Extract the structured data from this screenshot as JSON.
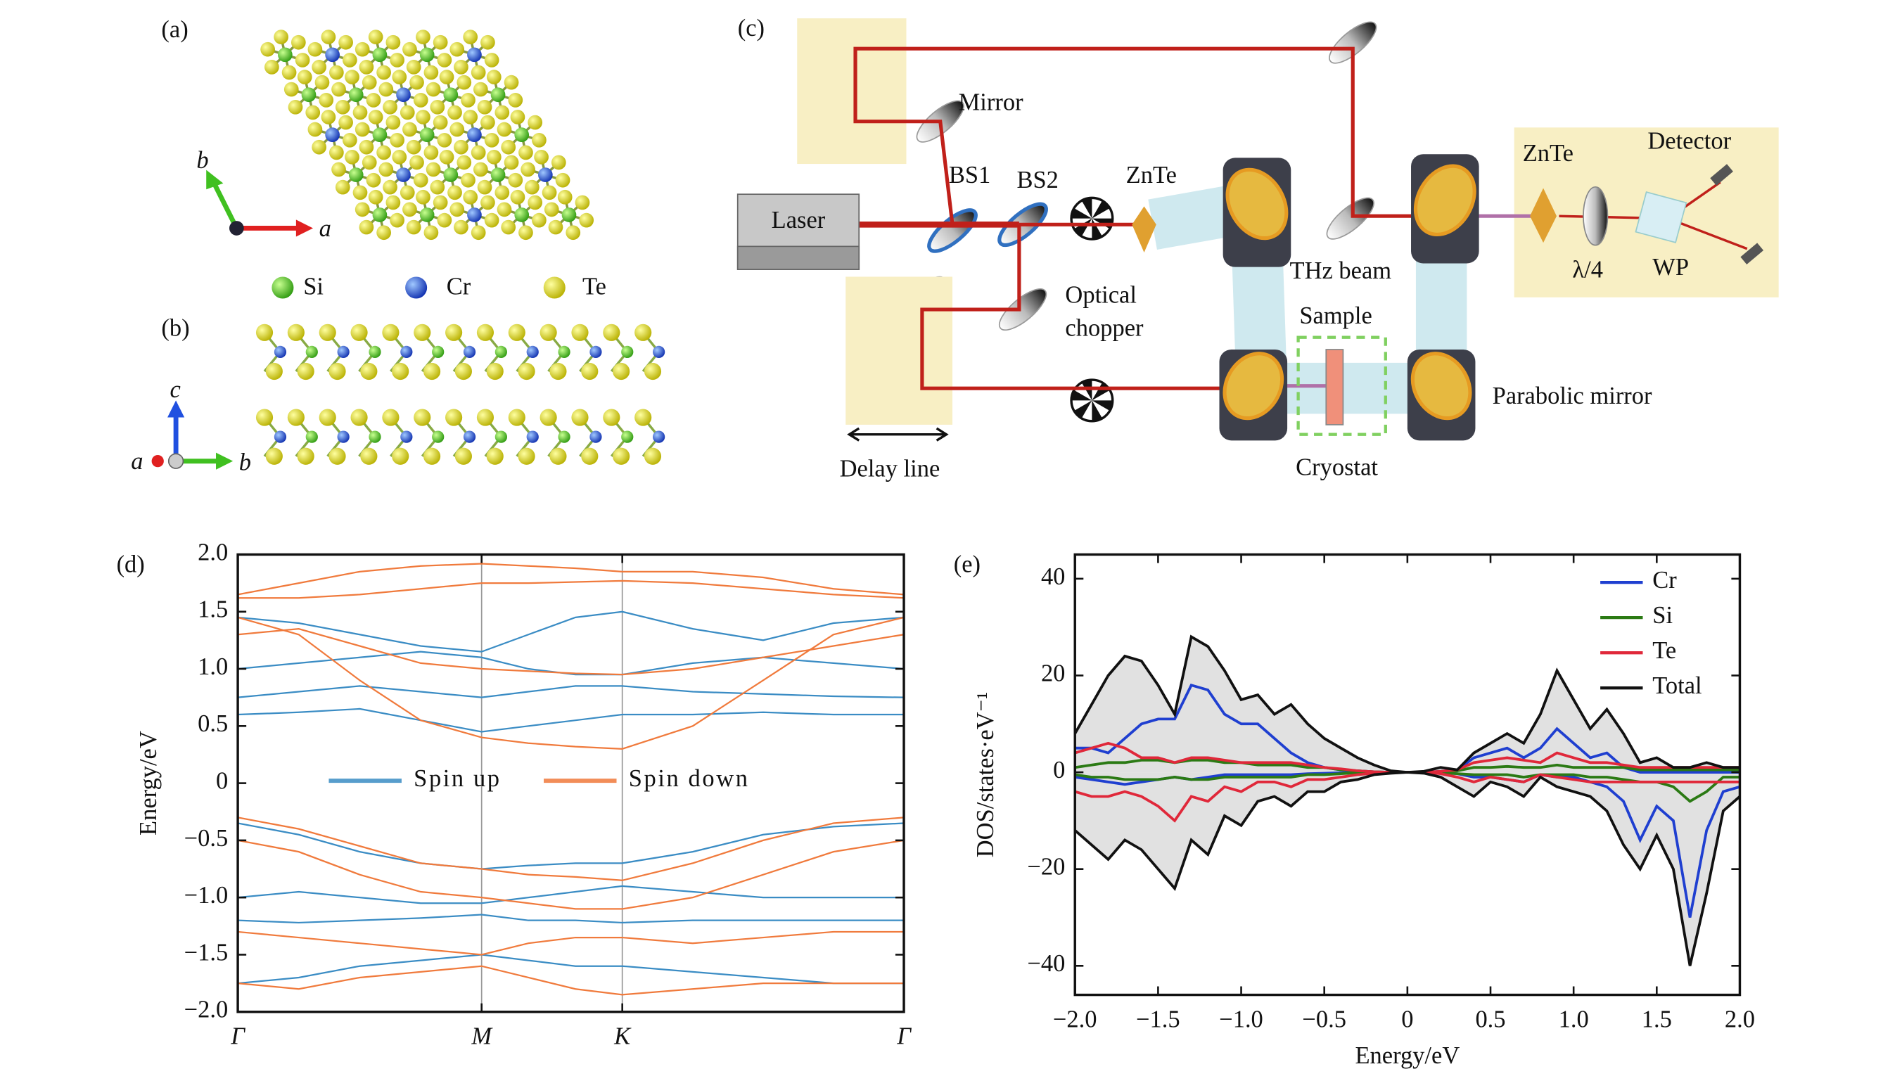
{
  "panels": {
    "a": {
      "label": "(a)",
      "axes": [
        "b",
        "a"
      ],
      "legend": [
        "Si",
        "Cr",
        "Te"
      ]
    },
    "b": {
      "label": "(b)",
      "axes": [
        "c",
        "a",
        "b"
      ]
    },
    "c": {
      "label": "(c)",
      "mirror": "Mirror",
      "bs1": "BS1",
      "bs2": "BS2",
      "znte1": "ZnTe",
      "laser": "Laser",
      "optical": "Optical",
      "chopper": "chopper",
      "thz": "THz beam",
      "sample": "Sample",
      "cryostat": "Cryostat",
      "delay": "Delay line",
      "parabolic": "Parabolic mirror",
      "znte2": "ZnTe",
      "detector": "Detector",
      "quarter": "λ/4",
      "wp": "WP"
    }
  },
  "chart_data": [
    {
      "type": "line",
      "panel": "(d)",
      "ylabel": "Energy/eV",
      "x": [
        0,
        0.25,
        0.5,
        0.75,
        1,
        1.192,
        1.385,
        1.577,
        1.866,
        2.155,
        2.443,
        2.732
      ],
      "xlim": [
        0,
        2.732
      ],
      "xticks": [
        {
          "value": 0,
          "label": "Γ"
        },
        {
          "value": 1,
          "label": "M"
        },
        {
          "value": 1.577,
          "label": "K"
        },
        {
          "value": 2.732,
          "label": "Γ"
        }
      ],
      "xgrid": true,
      "ylim": [
        -2,
        2
      ],
      "yticks": [
        {
          "value": 2,
          "label": "2.0"
        },
        1.5,
        {
          "value": 1,
          "label": "1.0"
        },
        0.5,
        0,
        {
          "value": -0.5,
          "label": "−0.5"
        },
        {
          "value": -1,
          "label": "−1.0"
        },
        {
          "value": -1.5,
          "label": "−1.5"
        },
        {
          "value": -2,
          "label": "−2.0"
        }
      ],
      "legend": "center",
      "series": [
        {
          "name": "Spin up",
          "color": "#3a8cc4",
          "values": [
            [
              0.6,
              0.62,
              0.65,
              0.55,
              0.45,
              0.5,
              0.55,
              0.6,
              0.6,
              0.62,
              0.6,
              0.6
            ],
            [
              0.75,
              0.8,
              0.85,
              0.8,
              0.75,
              0.8,
              0.85,
              0.85,
              0.8,
              0.78,
              0.76,
              0.75
            ],
            [
              1.0,
              1.05,
              1.1,
              1.15,
              1.1,
              1.0,
              0.95,
              0.95,
              1.05,
              1.1,
              1.05,
              1.0
            ],
            [
              1.45,
              1.4,
              1.3,
              1.2,
              1.15,
              1.3,
              1.45,
              1.5,
              1.35,
              1.25,
              1.4,
              1.45
            ],
            [
              -0.35,
              -0.45,
              -0.6,
              -0.7,
              -0.75,
              -0.72,
              -0.7,
              -0.7,
              -0.6,
              -0.45,
              -0.38,
              -0.35
            ],
            [
              -1.0,
              -0.95,
              -1.0,
              -1.05,
              -1.05,
              -1.0,
              -0.95,
              -0.9,
              -0.95,
              -1.0,
              -1.0,
              -1.0
            ],
            [
              -1.2,
              -1.22,
              -1.2,
              -1.18,
              -1.15,
              -1.2,
              -1.2,
              -1.22,
              -1.2,
              -1.2,
              -1.2,
              -1.2
            ],
            [
              -1.75,
              -1.7,
              -1.6,
              -1.55,
              -1.5,
              -1.55,
              -1.6,
              -1.6,
              -1.65,
              -1.7,
              -1.75,
              -1.75
            ]
          ]
        },
        {
          "name": "Spin down",
          "color": "#f07a3c",
          "values": [
            [
              1.45,
              1.3,
              0.9,
              0.55,
              0.4,
              0.35,
              0.32,
              0.3,
              0.5,
              0.9,
              1.3,
              1.45
            ],
            [
              1.62,
              1.62,
              1.65,
              1.7,
              1.75,
              1.75,
              1.76,
              1.77,
              1.75,
              1.7,
              1.65,
              1.62
            ],
            [
              1.65,
              1.75,
              1.85,
              1.9,
              1.92,
              1.9,
              1.88,
              1.85,
              1.85,
              1.8,
              1.7,
              1.65
            ],
            [
              1.3,
              1.35,
              1.2,
              1.05,
              1.0,
              0.98,
              0.96,
              0.95,
              1.0,
              1.1,
              1.2,
              1.3
            ],
            [
              -0.3,
              -0.4,
              -0.55,
              -0.7,
              -0.75,
              -0.8,
              -0.82,
              -0.85,
              -0.7,
              -0.5,
              -0.35,
              -0.3
            ],
            [
              -0.5,
              -0.6,
              -0.8,
              -0.95,
              -1.0,
              -1.05,
              -1.1,
              -1.1,
              -1.0,
              -0.8,
              -0.6,
              -0.5
            ],
            [
              -1.3,
              -1.35,
              -1.4,
              -1.45,
              -1.5,
              -1.4,
              -1.35,
              -1.35,
              -1.4,
              -1.35,
              -1.3,
              -1.3
            ],
            [
              -1.75,
              -1.8,
              -1.7,
              -1.65,
              -1.6,
              -1.7,
              -1.8,
              -1.85,
              -1.8,
              -1.75,
              -1.75,
              -1.75
            ]
          ]
        }
      ]
    },
    {
      "type": "line",
      "panel": "(e)",
      "xlabel": "Energy/eV",
      "ylabel": "DOS/states·eV⁻¹",
      "x": [
        -2.0,
        -1.9,
        -1.8,
        -1.7,
        -1.6,
        -1.5,
        -1.4,
        -1.3,
        -1.2,
        -1.1,
        -1.0,
        -0.9,
        -0.8,
        -0.7,
        -0.6,
        -0.5,
        -0.4,
        -0.3,
        -0.2,
        -0.1,
        0,
        0.1,
        0.2,
        0.3,
        0.4,
        0.5,
        0.6,
        0.7,
        0.8,
        0.9,
        1.0,
        1.1,
        1.2,
        1.3,
        1.4,
        1.5,
        1.6,
        1.7,
        1.8,
        1.9,
        2.0
      ],
      "xlim": [
        -2,
        2
      ],
      "xticks": [
        {
          "value": -2,
          "label": "−2.0"
        },
        {
          "value": -1.5,
          "label": "−1.5"
        },
        {
          "value": -1,
          "label": "−1.0"
        },
        {
          "value": -0.5,
          "label": "−0.5"
        },
        0,
        0.5,
        {
          "value": 1,
          "label": "1.0"
        },
        1.5,
        {
          "value": 2,
          "label": "2.0"
        }
      ],
      "ylim": [
        -46,
        45
      ],
      "yticks": [
        {
          "value": -40,
          "label": "−40"
        },
        {
          "value": -20,
          "label": "−20"
        },
        0,
        20,
        40
      ],
      "legend": "upper right",
      "series": [
        {
          "name": "Cr",
          "color": "#1f3fd0",
          "values": [
            5,
            5,
            4,
            7,
            10,
            11,
            11,
            18,
            17,
            12,
            10,
            10,
            7,
            4,
            2,
            1,
            0.5,
            0.3,
            0.1,
            0,
            0,
            0,
            0.2,
            0.5,
            3,
            4,
            5,
            3,
            5,
            9,
            6,
            3,
            4,
            1,
            0,
            0,
            0,
            0,
            0,
            0,
            0
          ]
        },
        {
          "color": "#1f3fd0",
          "values": [
            -1,
            -1.5,
            -2,
            -2.5,
            -2,
            -1.5,
            -1,
            -1.5,
            -1,
            -0.5,
            -0.5,
            -0.5,
            -0.5,
            -0.5,
            -0.3,
            -0.2,
            -0.1,
            0,
            0,
            0,
            0,
            0,
            -0.1,
            -0.3,
            -1,
            -1,
            -1.5,
            -2,
            -0.5,
            -1,
            -1,
            -2,
            -3,
            -6,
            -14,
            -7,
            -10,
            -30,
            -12,
            -4,
            -3
          ]
        },
        {
          "name": "Si",
          "color": "#2b7a14",
          "values": [
            1,
            1.5,
            2,
            2,
            2.5,
            2.5,
            2,
            2.5,
            2.5,
            2,
            2,
            1.5,
            1.5,
            1.5,
            1,
            1,
            0.5,
            0.3,
            0.1,
            0,
            0,
            0,
            0.1,
            0.3,
            1,
            1,
            1.2,
            1,
            1,
            1.5,
            1,
            1,
            1,
            1,
            0.5,
            0.5,
            0.5,
            0.5,
            0.5,
            0.5,
            0.5
          ]
        },
        {
          "color": "#2b7a14",
          "values": [
            -0.5,
            -1,
            -1,
            -1.5,
            -1.5,
            -1.5,
            -1,
            -1.5,
            -1.5,
            -1,
            -1,
            -1,
            -1,
            -1,
            -0.5,
            -0.5,
            -0.3,
            -0.1,
            0,
            0,
            0,
            0,
            -0.1,
            -0.3,
            -0.5,
            -0.5,
            -0.5,
            -1,
            -0.5,
            -0.5,
            -0.5,
            -1,
            -1,
            -1.5,
            -2,
            -2,
            -3,
            -6,
            -4,
            -1,
            -1
          ]
        },
        {
          "name": "Te",
          "color": "#e0283a",
          "values": [
            4,
            5,
            6,
            5,
            3,
            3,
            2,
            3,
            3,
            2.5,
            2,
            2,
            2,
            2,
            1.5,
            1,
            0.7,
            0.3,
            0.1,
            0,
            0,
            0,
            0.2,
            0.5,
            2,
            2.5,
            3,
            2.5,
            2,
            4,
            3,
            2,
            2,
            1.5,
            1,
            1,
            1,
            1,
            1,
            1,
            1
          ]
        },
        {
          "color": "#e0283a",
          "values": [
            -4,
            -5,
            -5,
            -4,
            -5,
            -7,
            -10,
            -5,
            -6,
            -3,
            -4,
            -2,
            -2,
            -3,
            -1.5,
            -1.5,
            -1,
            -0.5,
            -0.2,
            0,
            0,
            0,
            -0.3,
            -1,
            -2,
            -1,
            -1.5,
            -2,
            -0.5,
            -1,
            -1.5,
            -2,
            -2,
            -2,
            -2,
            -2,
            -2,
            -2,
            -2,
            -2,
            -2
          ]
        },
        {
          "name": "Total",
          "color": "#111111",
          "fill": "#d4d4d4",
          "values": [
            8,
            14,
            20,
            24,
            23,
            18,
            12,
            28,
            26,
            21,
            15,
            16,
            12,
            14,
            10,
            7,
            5,
            3,
            1.5,
            0.3,
            0,
            0.2,
            1,
            0.5,
            4,
            6,
            8,
            6,
            12,
            21,
            15,
            9,
            13,
            8,
            2,
            3,
            1,
            1,
            2,
            1,
            1
          ]
        },
        {
          "color": "#111111",
          "fill": "#d4d4d4",
          "values": [
            -12,
            -15,
            -18,
            -14,
            -16,
            -20,
            -24,
            -14,
            -17,
            -9,
            -11,
            -6,
            -5,
            -7,
            -4,
            -4,
            -2,
            -1.5,
            -0.5,
            -0.2,
            0,
            -0.2,
            -1,
            -3,
            -5,
            -2,
            -3,
            -5,
            -1,
            -3,
            -4,
            -5,
            -8,
            -15,
            -20,
            -13,
            -20,
            -40,
            -25,
            -8,
            -5
          ]
        }
      ]
    }
  ]
}
